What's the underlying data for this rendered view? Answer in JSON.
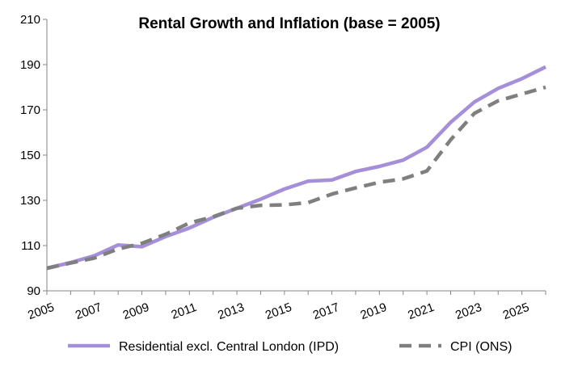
{
  "chart_data": {
    "type": "line",
    "title": "Rental Growth and Inflation (base = 2005)",
    "xlabel": "",
    "ylabel": "",
    "xlim": [
      2005,
      2026
    ],
    "ylim": [
      90,
      210
    ],
    "x_ticks": [
      "2005",
      "2007",
      "2009",
      "2011",
      "2013",
      "2015",
      "2017",
      "2019",
      "2021",
      "2023",
      "2025"
    ],
    "y_ticks": [
      "90",
      "110",
      "130",
      "150",
      "170",
      "190",
      "210"
    ],
    "grid": false,
    "legend_position": "bottom",
    "x": [
      2005,
      2006,
      2007,
      2008,
      2009,
      2010,
      2011,
      2012,
      2013,
      2014,
      2015,
      2016,
      2017,
      2018,
      2019,
      2020,
      2021,
      2022,
      2023,
      2024,
      2025,
      2026
    ],
    "series": [
      {
        "name": "Residential excl. Central London (IPD)",
        "color": "#a68fd9",
        "style": "solid",
        "values": [
          100,
          102.5,
          105.5,
          110.3,
          109.5,
          114,
          117.8,
          122.5,
          126.5,
          130.5,
          135,
          138.5,
          139,
          142.8,
          145,
          147.8,
          153.5,
          164.5,
          173.5,
          179.5,
          183.8,
          189
        ]
      },
      {
        "name": "CPI (ONS)",
        "color": "#7f7f7f",
        "style": "dashed",
        "values": [
          100,
          102.3,
          104.5,
          108.5,
          111,
          115,
          120,
          122.8,
          126.5,
          127.8,
          128,
          129,
          132.8,
          135.5,
          138,
          139.5,
          143,
          156.8,
          168.5,
          174,
          177,
          180
        ]
      }
    ]
  }
}
